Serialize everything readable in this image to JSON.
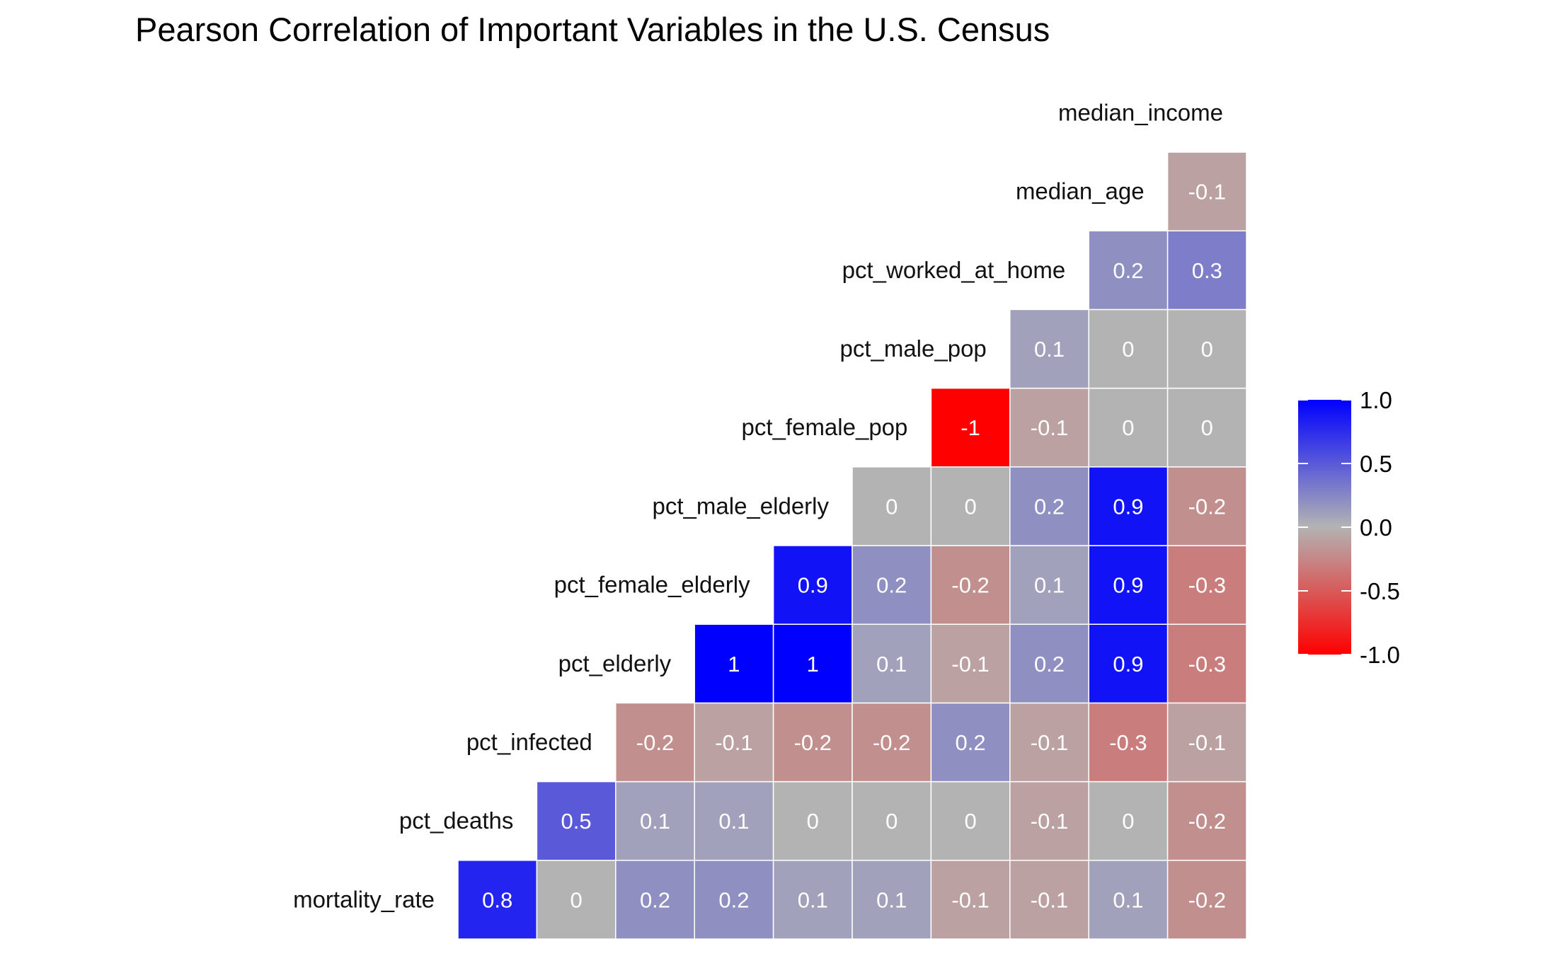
{
  "chart_data": {
    "type": "heatmap",
    "title": "Pearson Correlation of Important Variables in the U.S. Census",
    "xlabel": "",
    "ylabel": "",
    "variables": [
      "mortality_rate",
      "pct_deaths",
      "pct_infected",
      "pct_elderly",
      "pct_female_elderly",
      "pct_male_elderly",
      "pct_female_pop",
      "pct_male_pop",
      "pct_worked_at_home",
      "median_age",
      "median_income"
    ],
    "rows": [
      {
        "label": "mortality_rate",
        "values": [
          0.8,
          0,
          0.2,
          0.2,
          0.1,
          0.1,
          -0.1,
          -0.1,
          0.1,
          -0.2
        ]
      },
      {
        "label": "pct_deaths",
        "values": [
          0.5,
          0.1,
          0.1,
          0,
          0,
          0,
          -0.1,
          0,
          -0.2
        ]
      },
      {
        "label": "pct_infected",
        "values": [
          -0.2,
          -0.1,
          -0.2,
          -0.2,
          0.2,
          -0.1,
          -0.3,
          -0.1
        ]
      },
      {
        "label": "pct_elderly",
        "values": [
          1,
          1,
          0.1,
          -0.1,
          0.2,
          0.9,
          -0.3
        ]
      },
      {
        "label": "pct_female_elderly",
        "values": [
          0.9,
          0.2,
          -0.2,
          0.1,
          0.9,
          -0.3
        ]
      },
      {
        "label": "pct_male_elderly",
        "values": [
          0,
          0,
          0.2,
          0.9,
          -0.2
        ]
      },
      {
        "label": "pct_female_pop",
        "values": [
          -1,
          -0.1,
          0,
          0
        ]
      },
      {
        "label": "pct_male_pop",
        "values": [
          0.1,
          0,
          0
        ]
      },
      {
        "label": "pct_worked_at_home",
        "values": [
          0.2,
          0.3
        ]
      },
      {
        "label": "median_age",
        "values": [
          -0.1
        ]
      },
      {
        "label": "median_income",
        "values": []
      }
    ],
    "value_range": [
      -1.0,
      1.0
    ],
    "colors": {
      "low": "#ff0000",
      "mid": "#b3b3b3",
      "high": "#0000ff"
    },
    "legend": {
      "ticks": [
        "1.0",
        "0.5",
        "0.0",
        "-0.5",
        "-1.0"
      ],
      "placement": "right"
    },
    "grid": false
  }
}
